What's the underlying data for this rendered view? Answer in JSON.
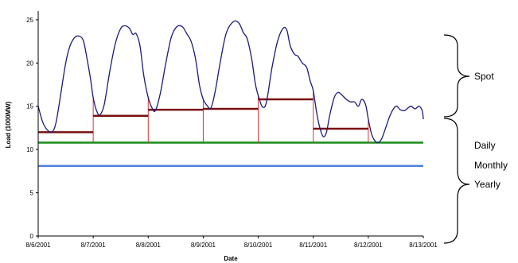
{
  "chart_data": {
    "type": "line",
    "xlabel": "Date",
    "ylabel": "Load (1000MW)",
    "ylim": [
      0,
      26
    ],
    "xlim": [
      "8/6/2001",
      "8/13/2001"
    ],
    "yticks": [
      "0",
      "5",
      "10",
      "15",
      "20",
      "25"
    ],
    "xticks": [
      "8/6/2001",
      "8/7/2001",
      "8/8/2001",
      "8/9/2001",
      "8/10/2001",
      "8/11/2001",
      "8/12/2001",
      "8/13/2001"
    ],
    "grid": false,
    "series": [
      {
        "kind": "hourly_load",
        "color": "#1a1a80",
        "points": [
          [
            0.0,
            15.0
          ],
          [
            0.08,
            13.2
          ],
          [
            0.16,
            12.3
          ],
          [
            0.25,
            12.0
          ],
          [
            0.32,
            13.0
          ],
          [
            0.4,
            16.0
          ],
          [
            0.5,
            20.0
          ],
          [
            0.58,
            22.0
          ],
          [
            0.67,
            23.0
          ],
          [
            0.75,
            23.1
          ],
          [
            0.82,
            22.6
          ],
          [
            0.88,
            20.8
          ],
          [
            0.95,
            18.2
          ],
          [
            1.0,
            16.0
          ],
          [
            1.06,
            14.5
          ],
          [
            1.12,
            14.0
          ],
          [
            1.2,
            15.2
          ],
          [
            1.3,
            19.0
          ],
          [
            1.4,
            22.2
          ],
          [
            1.5,
            24.0
          ],
          [
            1.58,
            24.3
          ],
          [
            1.66,
            24.0
          ],
          [
            1.72,
            23.3
          ],
          [
            1.78,
            23.4
          ],
          [
            1.85,
            22.0
          ],
          [
            1.92,
            18.5
          ],
          [
            2.0,
            16.0
          ],
          [
            2.07,
            14.8
          ],
          [
            2.13,
            14.5
          ],
          [
            2.22,
            16.5
          ],
          [
            2.32,
            20.0
          ],
          [
            2.42,
            23.0
          ],
          [
            2.52,
            24.2
          ],
          [
            2.62,
            24.2
          ],
          [
            2.7,
            23.4
          ],
          [
            2.78,
            22.5
          ],
          [
            2.86,
            20.5
          ],
          [
            2.93,
            17.5
          ],
          [
            3.0,
            15.8
          ],
          [
            3.08,
            15.0
          ],
          [
            3.14,
            14.8
          ],
          [
            3.22,
            16.8
          ],
          [
            3.32,
            20.5
          ],
          [
            3.42,
            23.5
          ],
          [
            3.55,
            24.8
          ],
          [
            3.65,
            24.6
          ],
          [
            3.73,
            23.5
          ],
          [
            3.8,
            22.8
          ],
          [
            3.88,
            20.5
          ],
          [
            3.95,
            17.5
          ],
          [
            4.02,
            15.8
          ],
          [
            4.08,
            14.9
          ],
          [
            4.15,
            15.5
          ],
          [
            4.25,
            19.5
          ],
          [
            4.35,
            22.5
          ],
          [
            4.45,
            24.0
          ],
          [
            4.52,
            23.8
          ],
          [
            4.58,
            22.0
          ],
          [
            4.66,
            21.0
          ],
          [
            4.72,
            20.8
          ],
          [
            4.8,
            20.0
          ],
          [
            4.88,
            19.5
          ],
          [
            4.94,
            18.0
          ],
          [
            5.0,
            16.8
          ],
          [
            5.06,
            14.3
          ],
          [
            5.12,
            12.5
          ],
          [
            5.18,
            11.5
          ],
          [
            5.24,
            12.0
          ],
          [
            5.3,
            14.0
          ],
          [
            5.38,
            16.0
          ],
          [
            5.45,
            16.6
          ],
          [
            5.52,
            16.3
          ],
          [
            5.6,
            15.8
          ],
          [
            5.68,
            15.5
          ],
          [
            5.75,
            15.5
          ],
          [
            5.82,
            15.0
          ],
          [
            5.88,
            15.8
          ],
          [
            5.95,
            15.2
          ],
          [
            6.0,
            13.5
          ],
          [
            6.06,
            11.8
          ],
          [
            6.12,
            11.0
          ],
          [
            6.18,
            10.8
          ],
          [
            6.24,
            11.2
          ],
          [
            6.3,
            12.2
          ],
          [
            6.4,
            14.0
          ],
          [
            6.5,
            15.0
          ],
          [
            6.58,
            14.6
          ],
          [
            6.66,
            14.5
          ],
          [
            6.72,
            14.8
          ],
          [
            6.78,
            15.0
          ],
          [
            6.85,
            14.7
          ],
          [
            6.92,
            15.0
          ],
          [
            6.98,
            14.5
          ],
          [
            7.0,
            13.5
          ]
        ]
      },
      {
        "kind": "daily_average",
        "color": "#7a1010",
        "segments": [
          {
            "x0": 0,
            "x1": 1,
            "value": 12.0
          },
          {
            "x0": 1,
            "x1": 2,
            "value": 13.9
          },
          {
            "x0": 2,
            "x1": 3,
            "value": 14.6
          },
          {
            "x0": 3,
            "x1": 4,
            "value": 14.7
          },
          {
            "x0": 4,
            "x1": 5,
            "value": 15.8
          },
          {
            "x0": 5,
            "x1": 6,
            "value": 12.4
          }
        ]
      },
      {
        "kind": "monthly_level",
        "color": "#1a8a1a",
        "value": 10.8,
        "x0": 0,
        "x1": 7
      },
      {
        "kind": "yearly_level",
        "color": "#4a7fdc",
        "value": 8.1,
        "x0": 0,
        "x1": 7
      }
    ],
    "annotations": [
      "Spot",
      "Daily",
      "Monthly",
      "Yearly"
    ]
  }
}
